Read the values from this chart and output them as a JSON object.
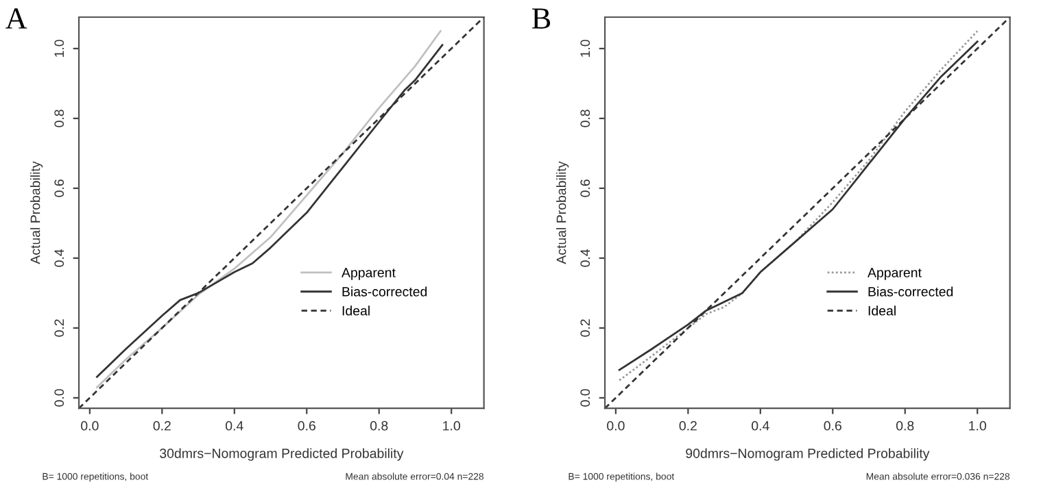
{
  "chart_data": [
    {
      "type": "line",
      "title": "A",
      "xlabel": "30dmrs−Nomogram Predicted Probability",
      "ylabel": "Actual Probability",
      "xlim": [
        -0.03,
        1.09
      ],
      "ylim": [
        -0.03,
        1.09
      ],
      "xticks": [
        {
          "value": 0,
          "label": "0.0"
        },
        {
          "value": 0.2,
          "label": "0.2"
        },
        {
          "value": 0.4,
          "label": "0.4"
        },
        {
          "value": 0.6,
          "label": "0.6"
        },
        {
          "value": 0.8,
          "label": "0.8"
        },
        {
          "value": 1,
          "label": "1.0"
        }
      ],
      "yticks": [
        {
          "value": 0,
          "label": "0.0"
        },
        {
          "value": 0.2,
          "label": "0.2"
        },
        {
          "value": 0.4,
          "label": "0.4"
        },
        {
          "value": 0.6,
          "label": "0.6"
        },
        {
          "value": 0.8,
          "label": "0.8"
        },
        {
          "value": 1,
          "label": "1.0"
        }
      ],
      "grid": false,
      "legend": "right",
      "series": [
        {
          "name": "Apparent",
          "color": "#c0c0c0",
          "line_style": "solid",
          "x": [
            0.02,
            0.1,
            0.2,
            0.3,
            0.4,
            0.5,
            0.6,
            0.7,
            0.8,
            0.9,
            0.97
          ],
          "values": [
            0.03,
            0.11,
            0.2,
            0.295,
            0.37,
            0.46,
            0.58,
            0.7,
            0.83,
            0.95,
            1.05
          ]
        },
        {
          "name": "Bias-corrected",
          "color": "#333333",
          "line_style": "solid",
          "x": [
            0.02,
            0.1,
            0.2,
            0.25,
            0.3,
            0.35,
            0.4,
            0.45,
            0.5,
            0.6,
            0.7,
            0.8,
            0.87,
            0.9,
            0.975
          ],
          "values": [
            0.06,
            0.14,
            0.235,
            0.28,
            0.3,
            0.33,
            0.36,
            0.385,
            0.43,
            0.53,
            0.66,
            0.79,
            0.88,
            0.91,
            1.01
          ]
        },
        {
          "name": "Ideal",
          "color": "#333333",
          "line_style": "dashed",
          "x": [
            -0.03,
            1.09
          ],
          "values": [
            -0.03,
            1.09
          ]
        }
      ],
      "annotations": [
        "B= 1000 repetitions, boot",
        "Mean absolute error=0.04 n=228"
      ]
    },
    {
      "type": "line",
      "title": "B",
      "xlabel": "90dmrs−Nomogram Predicted Probability",
      "ylabel": "Actual Probability",
      "xlim": [
        -0.03,
        1.09
      ],
      "ylim": [
        -0.03,
        1.09
      ],
      "xticks": [
        {
          "value": 0,
          "label": "0.0"
        },
        {
          "value": 0.2,
          "label": "0.2"
        },
        {
          "value": 0.4,
          "label": "0.4"
        },
        {
          "value": 0.6,
          "label": "0.6"
        },
        {
          "value": 0.8,
          "label": "0.8"
        },
        {
          "value": 1,
          "label": "1.0"
        }
      ],
      "yticks": [
        {
          "value": 0,
          "label": "0.0"
        },
        {
          "value": 0.2,
          "label": "0.2"
        },
        {
          "value": 0.4,
          "label": "0.4"
        },
        {
          "value": 0.6,
          "label": "0.6"
        },
        {
          "value": 0.8,
          "label": "0.8"
        },
        {
          "value": 1,
          "label": "1.0"
        }
      ],
      "grid": false,
      "legend": "right",
      "series": [
        {
          "name": "Apparent",
          "color": "#999999",
          "line_style": "dotted",
          "x": [
            0.01,
            0.1,
            0.2,
            0.25,
            0.3,
            0.35,
            0.4,
            0.5,
            0.6,
            0.7,
            0.8,
            0.9,
            1.0
          ],
          "values": [
            0.05,
            0.12,
            0.2,
            0.24,
            0.26,
            0.3,
            0.36,
            0.45,
            0.56,
            0.68,
            0.82,
            0.94,
            1.05
          ]
        },
        {
          "name": "Bias-corrected",
          "color": "#333333",
          "line_style": "solid",
          "x": [
            0.01,
            0.1,
            0.2,
            0.25,
            0.3,
            0.35,
            0.4,
            0.5,
            0.6,
            0.7,
            0.8,
            0.9,
            1.0
          ],
          "values": [
            0.08,
            0.14,
            0.21,
            0.25,
            0.275,
            0.3,
            0.36,
            0.45,
            0.54,
            0.67,
            0.8,
            0.92,
            1.02
          ]
        },
        {
          "name": "Ideal",
          "color": "#333333",
          "line_style": "dashed",
          "x": [
            -0.03,
            1.09
          ],
          "values": [
            -0.03,
            1.09
          ]
        }
      ],
      "annotations": [
        "B= 1000 repetitions, boot",
        "Mean absolute error=0.036 n=228"
      ]
    }
  ]
}
